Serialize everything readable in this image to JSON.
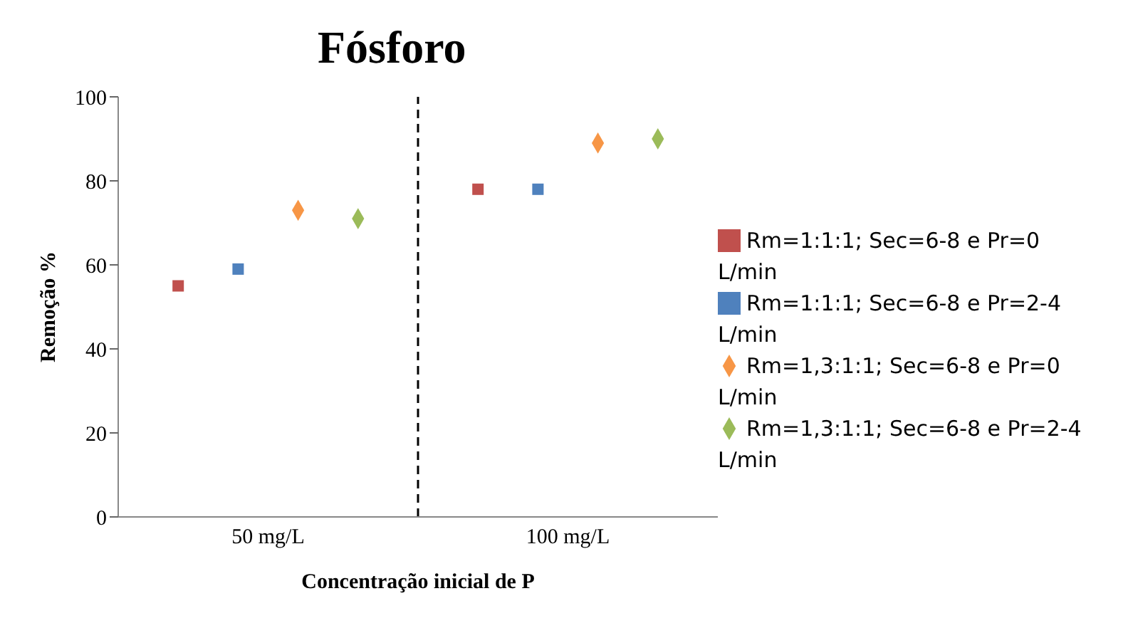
{
  "chart_data": {
    "type": "scatter",
    "title": "Fósforo",
    "xlabel": "Concentração  inicial de P",
    "ylabel": "Remoção  %",
    "categories": [
      "50  mg/L",
      "100  mg/L"
    ],
    "series": [
      {
        "name": "Rm=1:1:1; Sec=6-8 e Pr=0 L/min",
        "color": "#c0504d",
        "marker": "square",
        "values": [
          55,
          78
        ]
      },
      {
        "name": "Rm=1:1:1; Sec=6-8 e Pr=2-4 L/min",
        "color": "#4f81bd",
        "marker": "square",
        "values": [
          59,
          78
        ]
      },
      {
        "name": "Rm=1,3:1:1; Sec=6-8 e Pr=0 L/min",
        "color": "#f79646",
        "marker": "diamond",
        "values": [
          73,
          89
        ]
      },
      {
        "name": "Rm=1,3:1:1; Sec=6-8 e Pr=2-4 L/min",
        "color": "#9bbb59",
        "marker": "diamond",
        "values": [
          71,
          90
        ]
      }
    ],
    "ylim": [
      0,
      100
    ],
    "yticks": [
      0,
      20,
      40,
      60,
      80,
      100
    ],
    "grid": false,
    "legend": "right"
  }
}
